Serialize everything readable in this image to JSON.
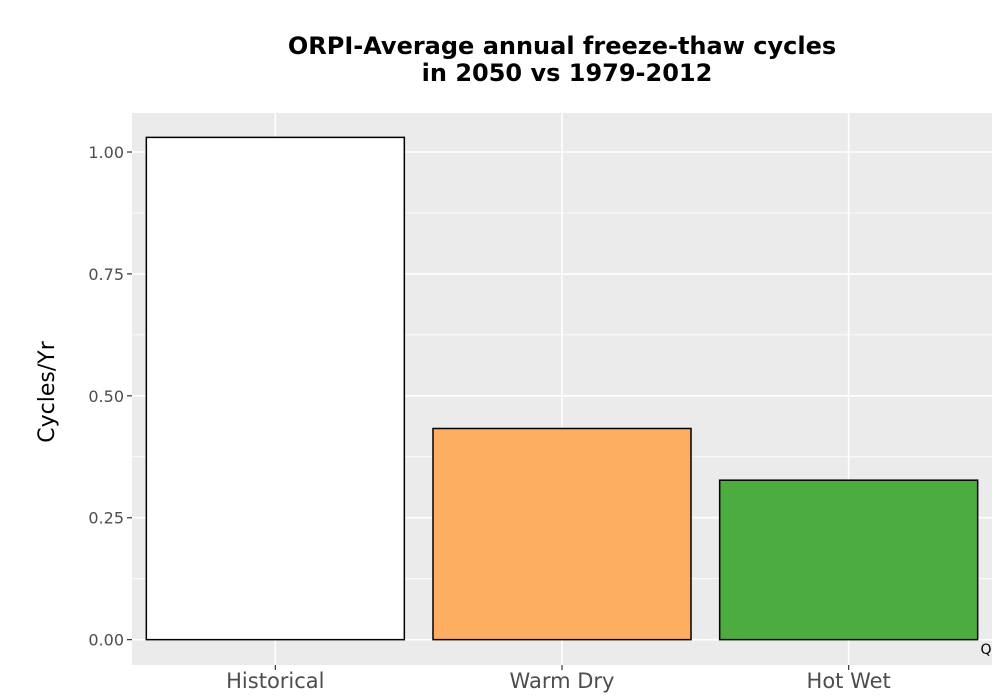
{
  "chart_data": {
    "type": "bar",
    "title_lines": [
      "ORPI-Average annual freeze-thaw cycles",
      "in 2050 vs 1979-2012"
    ],
    "xlabel": "",
    "ylabel": "Cycles/Yr",
    "categories": [
      "Historical",
      "Warm Dry",
      "Hot Wet"
    ],
    "values": [
      1.03,
      0.433,
      0.327
    ],
    "colors": [
      "#ffffff",
      "#fdae61",
      "#4dac3f"
    ],
    "bar_outline_color": "#000000",
    "ylim": [
      -0.052,
      1.08
    ],
    "yticks": [
      0,
      0.25,
      0.5,
      0.75,
      1.0
    ],
    "ytick_labels": [
      "0.00",
      "0.25",
      "0.50",
      "0.75",
      "1.00"
    ],
    "panel_background": "#ebebeb",
    "grid": true,
    "legend": "none",
    "corner_note": "Q"
  }
}
